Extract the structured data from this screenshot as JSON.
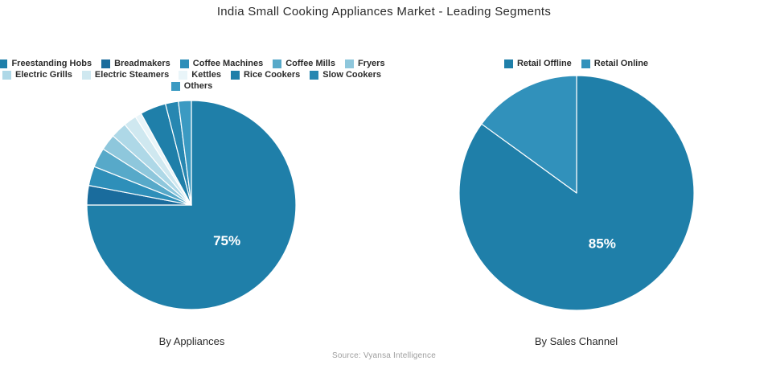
{
  "title": "India Small Cooking Appliances Market - Leading Segments",
  "source": "Source: Vyansa Intelligence",
  "accent_color": "#1f7fa9",
  "chart_data": [
    {
      "type": "pie",
      "title": "By Appliances",
      "labels": [
        "Freestanding Hobs",
        "Breadmakers",
        "Coffee Machines",
        "Coffee Mills",
        "Fryers",
        "Electric Grills",
        "Electric Steamers",
        "Kettles",
        "Rice Cookers",
        "Slow Cookers",
        "Others"
      ],
      "values": [
        75,
        3,
        3,
        3,
        2.5,
        2.5,
        2,
        1,
        4,
        2,
        2
      ],
      "colors": [
        "#1f7fa9",
        "#1a6c9d",
        "#2e8fb9",
        "#57a9c9",
        "#8ec7dc",
        "#aed8e7",
        "#cfe8f0",
        "#e9f5f9",
        "#1f7fa9",
        "#2787b1",
        "#3b9ac2"
      ],
      "percent_label": "75%",
      "legend_rows": [
        5,
        5,
        1
      ],
      "legend_position": "top",
      "start_angle_deg": 0,
      "direction": "clockwise"
    },
    {
      "type": "pie",
      "title": "By Sales Channel",
      "labels": [
        "Retail Offline",
        "Retail Online"
      ],
      "values": [
        85,
        15
      ],
      "colors": [
        "#1f7fa9",
        "#3191bb"
      ],
      "percent_label": "85%",
      "legend_rows": [
        2
      ],
      "legend_position": "top",
      "start_angle_deg": 0,
      "direction": "clockwise"
    }
  ]
}
